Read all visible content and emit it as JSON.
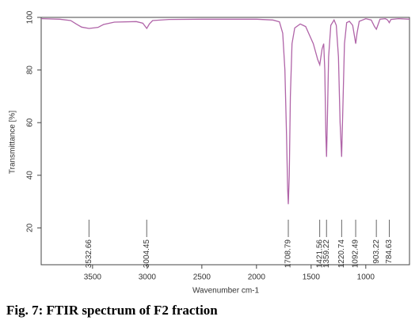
{
  "chart_data": {
    "type": "line",
    "x_label": "Wavenumber cm-1",
    "y_label": "Transmittance [%]",
    "caption": "Fig. 7: FTIR spectrum of F2 fraction",
    "xlim": [
      3970,
      600
    ],
    "ylim": [
      6,
      100
    ],
    "xticks": [
      3500,
      3000,
      2500,
      2000,
      1500,
      1000
    ],
    "yticks": [
      20,
      40,
      60,
      80,
      100
    ],
    "color": "#b064a8",
    "x": [
      3970,
      3800,
      3700,
      3650,
      3600,
      3532,
      3450,
      3400,
      3300,
      3100,
      3040,
      3004,
      2980,
      2950,
      2800,
      2500,
      2200,
      2000,
      1850,
      1790,
      1760,
      1740,
      1725,
      1715,
      1709,
      1700,
      1690,
      1675,
      1650,
      1600,
      1550,
      1480,
      1440,
      1421,
      1400,
      1385,
      1375,
      1365,
      1359,
      1352,
      1340,
      1320,
      1290,
      1270,
      1250,
      1235,
      1221,
      1210,
      1195,
      1175,
      1150,
      1120,
      1100,
      1092,
      1080,
      1060,
      1000,
      950,
      920,
      903,
      890,
      870,
      820,
      800,
      785,
      770,
      700,
      600
    ],
    "values": [
      99.5,
      99.3,
      98.8,
      97.5,
      96.3,
      95.8,
      96.2,
      97.3,
      98.2,
      98.4,
      97.8,
      95.8,
      97.5,
      98.8,
      99.2,
      99.3,
      99.3,
      99.3,
      99.0,
      98.3,
      94,
      80,
      55,
      35,
      29,
      40,
      70,
      90,
      96,
      97.5,
      96.5,
      90,
      84,
      82,
      88,
      90,
      80,
      55,
      47,
      60,
      85,
      97,
      99,
      97,
      85,
      60,
      47,
      65,
      90,
      98,
      98.5,
      97,
      92,
      90,
      94,
      98.5,
      99.5,
      99,
      96.5,
      95.5,
      97,
      99.3,
      99.5,
      99,
      98,
      99.2,
      99.5,
      99.3
    ],
    "peaks": [
      3532.66,
      3004.45,
      1708.79,
      1421.56,
      1359.22,
      1220.74,
      1092.49,
      903.22,
      784.63
    ]
  }
}
